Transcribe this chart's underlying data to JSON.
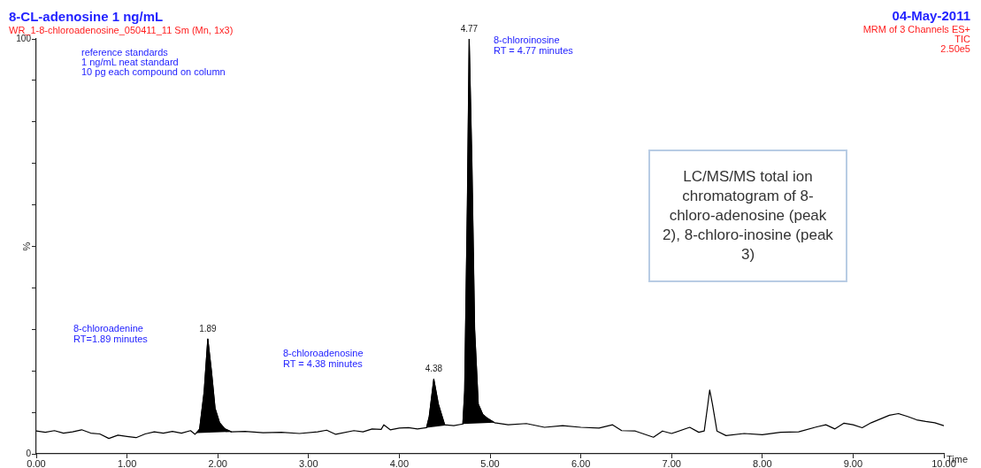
{
  "chart_data": {
    "type": "line",
    "title": "8-CL-adenosine 1 ng/mL",
    "subtitle": "WR_1-8-chloroadenosine_050411_11 Sm (Mn, 1x3)",
    "xlabel": "Time",
    "ylabel": "%",
    "xlim": [
      0,
      10
    ],
    "xticks": [
      {
        "value": 0,
        "label": "0.00"
      },
      {
        "value": 1,
        "label": "1.00"
      },
      {
        "value": 2,
        "label": "2.00"
      },
      {
        "value": 3,
        "label": "3.00"
      },
      {
        "value": 4,
        "label": "4.00"
      },
      {
        "value": 5,
        "label": "5.00"
      },
      {
        "value": 6,
        "label": "6.00"
      },
      {
        "value": 7,
        "label": "7.00"
      },
      {
        "value": 8,
        "label": "8.00"
      },
      {
        "value": 9,
        "label": "9.00"
      },
      {
        "value": 10,
        "label": "10.00"
      }
    ],
    "ylim": [
      0,
      100
    ],
    "yticks": [
      0,
      {
        "value": 10,
        "label": null
      },
      {
        "value": 20,
        "label": null
      },
      {
        "value": 30,
        "label": null
      },
      {
        "value": 40,
        "label": null
      },
      {
        "value": 50,
        "label": null
      },
      {
        "value": 60,
        "label": null
      },
      {
        "value": 70,
        "label": null
      },
      {
        "value": 80,
        "label": null
      },
      {
        "value": 90,
        "label": null
      },
      100
    ],
    "grid": false,
    "legend": false,
    "marker": "none",
    "line_style": "solid",
    "series": [
      {
        "type": "line",
        "color": "#000000",
        "x": [
          0,
          0.1,
          0.2,
          0.3,
          0.4,
          0.5,
          0.6,
          0.7,
          0.8,
          0.9,
          1.0,
          1.1,
          1.2,
          1.3,
          1.4,
          1.5,
          1.6,
          1.7,
          1.75,
          1.8,
          1.85,
          1.89,
          1.93,
          1.97,
          2.02,
          2.08,
          2.15,
          2.3,
          2.5,
          2.7,
          2.9,
          3.1,
          3.2,
          3.3,
          3.5,
          3.6,
          3.7,
          3.8,
          3.83,
          3.9,
          4.0,
          4.1,
          4.2,
          4.3,
          4.33,
          4.38,
          4.43,
          4.5,
          4.6,
          4.7,
          4.72,
          4.75,
          4.77,
          4.8,
          4.83,
          4.87,
          4.92,
          4.97,
          5.05,
          5.2,
          5.4,
          5.6,
          5.8,
          6.0,
          6.2,
          6.35,
          6.45,
          6.6,
          6.8,
          6.9,
          7.0,
          7.2,
          7.3,
          7.36,
          7.4,
          7.42,
          7.45,
          7.5,
          7.6,
          7.8,
          8.0,
          8.2,
          8.4,
          8.6,
          8.7,
          8.8,
          8.9,
          9.0,
          9.1,
          9.2,
          9.4,
          9.5,
          9.6,
          9.7,
          9.8,
          9.9,
          10.0
        ],
        "values": [
          5.5,
          5.2,
          5.6,
          5.0,
          5.3,
          5.8,
          5.0,
          4.8,
          3.7,
          4.5,
          4.2,
          3.9,
          4.8,
          5.3,
          5.0,
          5.4,
          5.0,
          5.6,
          4.7,
          6.0,
          15,
          27.7,
          20,
          11,
          7.5,
          6.0,
          5.3,
          5.4,
          5.1,
          5.2,
          4.9,
          5.3,
          5.7,
          4.7,
          5.6,
          5.3,
          6.0,
          5.9,
          7.0,
          5.8,
          6.2,
          6.3,
          6.0,
          6.3,
          9,
          18,
          12,
          7.0,
          6.8,
          7.2,
          15,
          60,
          100,
          70,
          30,
          12,
          9.5,
          8.6,
          7.5,
          7.0,
          7.3,
          6.4,
          6.8,
          6.4,
          6.2,
          7.0,
          5.6,
          5.5,
          4.0,
          5.5,
          4.9,
          6.4,
          5.2,
          5.5,
          12,
          15.4,
          12,
          5.5,
          4.4,
          4.9,
          4.6,
          5.2,
          5.3,
          6.5,
          7.0,
          6.0,
          7.4,
          7.0,
          6.3,
          7.5,
          9.3,
          9.7,
          9.0,
          8.2,
          7.8,
          7.5,
          6.8
        ]
      },
      {
        "type": "area",
        "color": "#000000",
        "x": [
          1.77,
          1.8,
          1.85,
          1.89,
          1.93,
          1.97,
          2.02,
          2.08,
          2.15
        ],
        "values": [
          5.0,
          6.0,
          15,
          27.7,
          20,
          11,
          7.5,
          6.0,
          5.3
        ]
      },
      {
        "type": "area",
        "color": "#000000",
        "x": [
          4.3,
          4.33,
          4.38,
          4.43,
          4.5,
          4.52
        ],
        "values": [
          6.3,
          9,
          18,
          12,
          7.0,
          6.9
        ]
      },
      {
        "type": "area",
        "color": "#000000",
        "x": [
          4.7,
          4.72,
          4.75,
          4.77,
          4.8,
          4.83,
          4.87,
          4.92,
          4.97,
          5.05
        ],
        "values": [
          7.2,
          15,
          60,
          100,
          70,
          30,
          12,
          9.5,
          8.6,
          7.5
        ]
      }
    ],
    "annotations": [
      "04-May-2011",
      "MRM of 3 Channels ES+",
      "TIC",
      "2.50e5",
      "reference standards",
      "1 ng/mL neat standard",
      "10 pg each compound on column",
      "8-chloroadenine\nRT=1.89 minutes",
      "8-chloroadenosine\nRT = 4.38 minutes",
      "8-chloroinosine\nRT = 4.77 minutes",
      "LC/MS/MS total ion chromatogram of 8-chloro-adenosine (peak 2), 8-chloro-inosine (peak 3)",
      {
        "text": "1.89",
        "x": 1.89,
        "y": 27.7
      },
      {
        "text": "4.38",
        "x": 4.38,
        "y": 18
      },
      {
        "text": "4.77",
        "x": 4.77,
        "y": 100
      }
    ]
  }
}
